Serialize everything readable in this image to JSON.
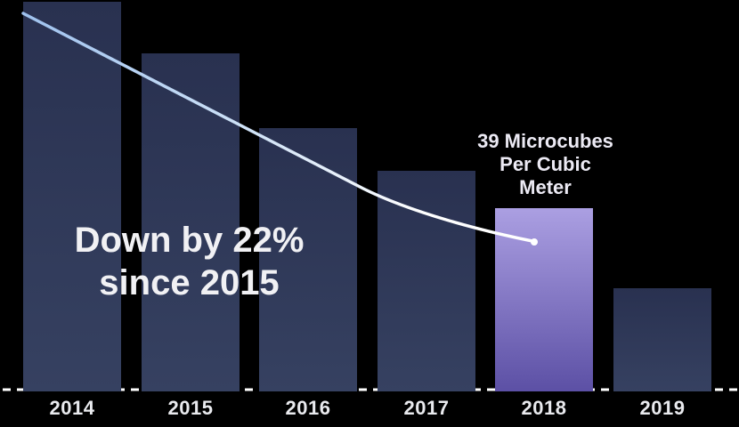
{
  "chart_data": {
    "type": "bar",
    "title": "",
    "categories": [
      "2014",
      "2015",
      "2016",
      "2017",
      "2018",
      "2019"
    ],
    "values": [
      83,
      72,
      56,
      47,
      39,
      22
    ],
    "value_unit": "microcubes per cubic meter",
    "ylim": [
      0,
      83
    ],
    "grid": false,
    "legend": false,
    "axis": {
      "baseline_style": "dashed",
      "tick_labels": [
        "2014",
        "2015",
        "2016",
        "2017",
        "2018",
        "2019"
      ]
    },
    "highlight": {
      "category": "2018",
      "value": 39,
      "label": "39 Microcubes\nPer Cubic\nMeter"
    },
    "annotation": {
      "text": "Down by 22%\nsince 2015"
    },
    "trend_line": {
      "shape": "smooth declining curve from top of 2014 bar to a dot on the 2018 bar",
      "end_dot": true
    }
  },
  "colors": {
    "background": "#000000",
    "bar_top": "#293150",
    "bar_bottom": "#364161",
    "highlight_bar_top": "#ab9fe2",
    "highlight_bar_bottom": "#5c50a5",
    "trend_start": "#9fc2ee",
    "trend_mid": "#cfe2f7",
    "trend_end": "#ffffff",
    "baseline_dash": "#ffffff",
    "year_label_text": "#e9eaee",
    "annotation_text": "#f1f1f4",
    "highlight_label_text": "#eceaf4"
  }
}
